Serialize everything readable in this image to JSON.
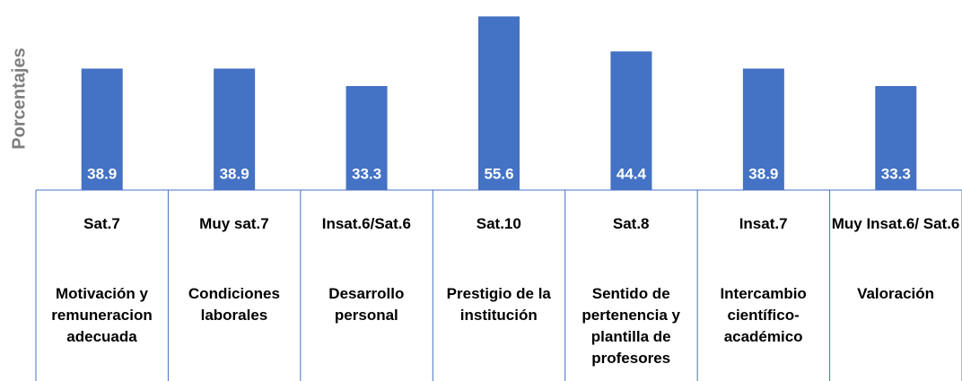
{
  "chart_data": {
    "type": "bar",
    "y_label": "Porcentajes",
    "codes": [
      "Sat.7",
      "Muy sat.7",
      "Insat.6/Sat.6",
      "Sat.10",
      "Sat.8",
      "Insat.7",
      "Muy Insat.6/ Sat.6"
    ],
    "categories": [
      "Motivación y remuneracion adecuada",
      "Condiciones laborales",
      "Desarrollo personal",
      "Prestigio de la institución",
      "Sentido de pertenencia y plantilla de profesores",
      "Intercambio científico-académico",
      "Valoración"
    ],
    "values": [
      38.9,
      38.9,
      33.3,
      55.6,
      44.4,
      38.9,
      33.3
    ],
    "color": "#4472c4",
    "ylim": [
      0,
      60
    ]
  }
}
